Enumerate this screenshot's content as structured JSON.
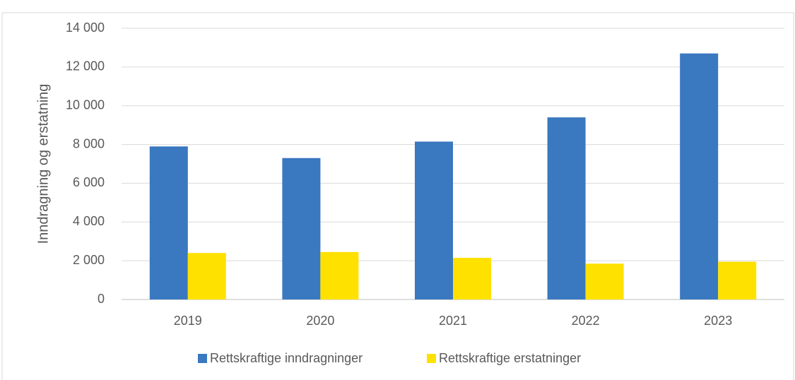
{
  "chart_data": {
    "type": "bar",
    "y_label": "Inndragning og erstatning",
    "categories": [
      "2019",
      "2020",
      "2021",
      "2022",
      "2023"
    ],
    "series": [
      {
        "name": "Rettskraftige inndragninger",
        "color": "#3a78c0",
        "values": [
          7900,
          7300,
          8150,
          9400,
          12700
        ]
      },
      {
        "name": "Rettskraftige erstatninger",
        "color": "#ffe100",
        "values": [
          2400,
          2450,
          2150,
          1850,
          1950
        ]
      }
    ],
    "ylim": [
      0,
      14000
    ],
    "yticks": [
      0,
      {
        "value": 2000,
        "label": "2 000"
      },
      {
        "value": 4000,
        "label": "4 000"
      },
      {
        "value": 6000,
        "label": "6 000"
      },
      {
        "value": 8000,
        "label": "8 000"
      },
      {
        "value": 10000,
        "label": "10 000"
      },
      {
        "value": 12000,
        "label": "12 000"
      },
      {
        "value": 14000,
        "label": "14 000"
      }
    ],
    "grid": true
  }
}
